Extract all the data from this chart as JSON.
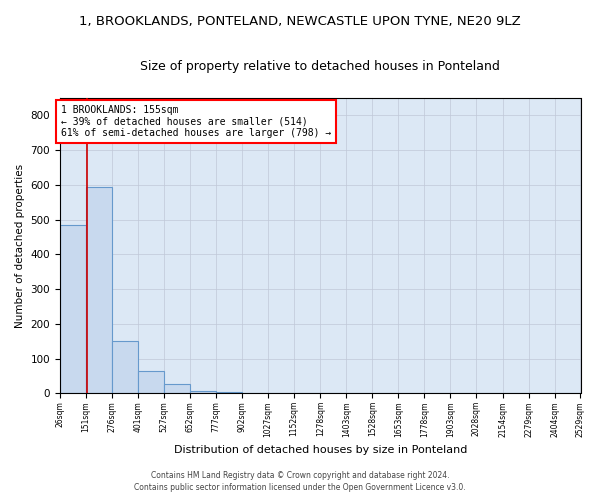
{
  "title": "1, BROOKLANDS, PONTELAND, NEWCASTLE UPON TYNE, NE20 9LZ",
  "subtitle": "Size of property relative to detached houses in Ponteland",
  "xlabel": "Distribution of detached houses by size in Ponteland",
  "ylabel": "Number of detached properties",
  "bar_values": [
    484,
    594,
    150,
    63,
    26,
    8,
    4,
    2,
    1,
    1,
    0,
    0,
    0,
    0,
    0,
    0,
    0,
    0,
    0,
    0
  ],
  "bin_edges": [
    26,
    151,
    276,
    401,
    527,
    652,
    777,
    902,
    1027,
    1152,
    1278,
    1403,
    1528,
    1653,
    1778,
    1903,
    2028,
    2154,
    2279,
    2404,
    2529
  ],
  "bar_color": "#c8d9ee",
  "bar_edge_color": "#6699cc",
  "annotation_text": "1 BROOKLANDS: 155sqm\n← 39% of detached houses are smaller (514)\n61% of semi-detached houses are larger (798) →",
  "annotation_box_color": "white",
  "annotation_box_edge_color": "red",
  "property_line_x": 155,
  "property_line_color": "#cc0000",
  "ylim": [
    0,
    850
  ],
  "xlim": [
    26,
    2529
  ],
  "grid_color": "#c0c8d8",
  "bg_color": "#dce8f5",
  "footer_line1": "Contains HM Land Registry data © Crown copyright and database right 2024.",
  "footer_line2": "Contains public sector information licensed under the Open Government Licence v3.0.",
  "title_fontsize": 9.5,
  "subtitle_fontsize": 9,
  "tick_labels": [
    "26sqm",
    "151sqm",
    "276sqm",
    "401sqm",
    "527sqm",
    "652sqm",
    "777sqm",
    "902sqm",
    "1027sqm",
    "1152sqm",
    "1278sqm",
    "1403sqm",
    "1528sqm",
    "1653sqm",
    "1778sqm",
    "1903sqm",
    "2028sqm",
    "2154sqm",
    "2279sqm",
    "2404sqm",
    "2529sqm"
  ]
}
